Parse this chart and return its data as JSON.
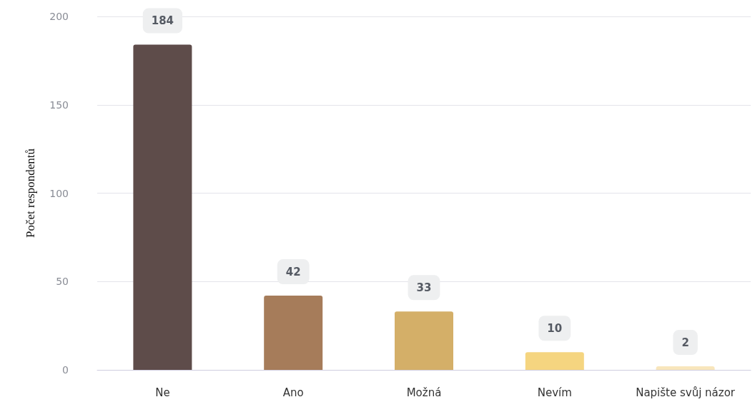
{
  "chart_data": {
    "type": "bar",
    "ylabel": "Počet respondentů",
    "categories": [
      "Ne",
      "Ano",
      "Možná",
      "Nevím",
      "Napište svůj názor"
    ],
    "values": [
      184,
      42,
      33,
      10,
      2
    ],
    "colors": [
      "#5e4c4a",
      "#a67c5a",
      "#d4af68",
      "#f5d580",
      "#f8e6bc"
    ],
    "ylim": [
      0,
      200
    ],
    "yticks": [
      0,
      50,
      100,
      150,
      200
    ],
    "grid": "y",
    "data_labels": true
  }
}
